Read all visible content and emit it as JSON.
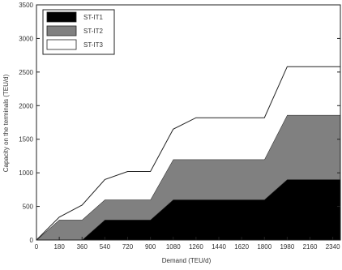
{
  "chart_data": {
    "type": "area",
    "stacked": true,
    "x_tick_labels": [
      "0",
      "180",
      "360",
      "540",
      "720",
      "900",
      "1080",
      "1260",
      "1440",
      "1620",
      "1800",
      "1980",
      "2160",
      "2340"
    ],
    "xlim": [
      0,
      2400
    ],
    "ylim": [
      0,
      3500
    ],
    "y_ticks": [
      0,
      500,
      1000,
      1500,
      2000,
      2500,
      3000,
      3500
    ],
    "xlabel": "Demand (TEU/d)",
    "ylabel": "Capacity on the terminals (TEU/d)",
    "legend_position": "top-left",
    "x": [
      0,
      180,
      360,
      540,
      720,
      900,
      1080,
      1260,
      1440,
      1620,
      1800,
      1980,
      2160,
      2400
    ],
    "series": [
      {
        "name": "ST-IT1",
        "color": "#000000",
        "values": [
          0,
          0,
          0,
          300,
          300,
          300,
          600,
          600,
          600,
          600,
          600,
          900,
          900,
          900
        ]
      },
      {
        "name": "ST-IT2",
        "color": "#808080",
        "values": [
          0,
          300,
          300,
          300,
          300,
          300,
          600,
          600,
          600,
          600,
          600,
          960,
          960,
          960
        ]
      },
      {
        "name": "ST-IT3",
        "color": "#ffffff",
        "values": [
          0,
          40,
          220,
          300,
          420,
          420,
          450,
          620,
          620,
          620,
          620,
          720,
          720,
          720
        ]
      }
    ]
  }
}
